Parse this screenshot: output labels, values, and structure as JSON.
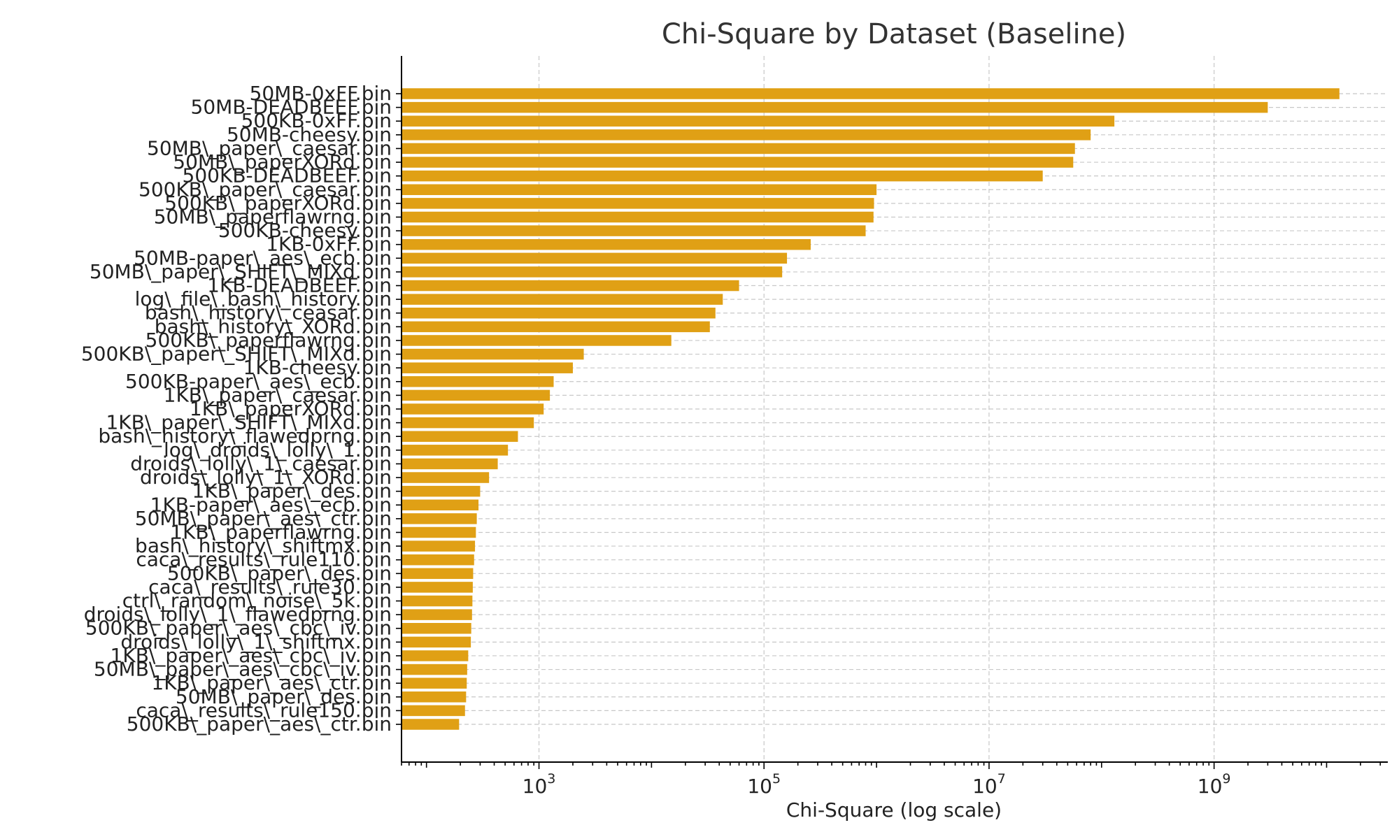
{
  "chart_data": {
    "type": "bar",
    "orientation": "horizontal",
    "title": "Chi-Square by Dataset (Baseline)",
    "xlabel": "Chi-Square (log scale)",
    "ylabel": "",
    "x_scale": "log",
    "xlim": [
      60,
      35000000000
    ],
    "x_ticks": [
      {
        "value": 1000,
        "base": "10",
        "exp": "3"
      },
      {
        "value": 100000,
        "base": "10",
        "exp": "5"
      },
      {
        "value": 10000000,
        "base": "10",
        "exp": "7"
      },
      {
        "value": 1000000000,
        "base": "10",
        "exp": "9"
      }
    ],
    "grid": true,
    "bar_color": "#E0A015",
    "categories": [
      "50MB-0xFF.bin",
      "50MB-DEADBEEF.bin",
      "500KB-0xFF.bin",
      "50MB-cheesy.bin",
      "50MB\\_paper\\_caesar.bin",
      "50MB\\_paperXORd.bin",
      "500KB-DEADBEEF.bin",
      "500KB\\_paper\\_caesar.bin",
      "500KB\\_paperXORd.bin",
      "50MB\\_paperflawrng.bin",
      "500KB-cheesy.bin",
      "1KB-0xFF.bin",
      "50MB-paper\\_aes\\_ecb.bin",
      "50MB\\_paper\\_SHIFT\\_MIXd.bin",
      "1KB-DEADBEEF.bin",
      "log\\_file\\_bash\\_history.bin",
      "bash\\_history\\_ceasar.bin",
      "bash\\_history\\_XORd.bin",
      "500KB\\_paperflawrng.bin",
      "500KB\\_paper\\_SHIFT\\_MIXd.bin",
      "1KB-cheesy.bin",
      "500KB-paper\\_aes\\_ecb.bin",
      "1KB\\_paper\\_caesar.bin",
      "1KB\\_paperXORd.bin",
      "1KB\\_paper\\_SHIFT\\_MIXd.bin",
      "bash\\_history\\_flawedprng.bin",
      "log\\_droids\\_lolly\\_1.bin",
      "droids\\_lolly\\_1\\_caesar.bin",
      "droids\\_lolly\\_1\\_XORd.bin",
      "1KB\\_paper\\_des.bin",
      "1KB-paper\\_aes\\_ecb.bin",
      "50MB\\_paper\\_aes\\_ctr.bin",
      "1KB\\_paperflawrng.bin",
      "bash\\_history\\_shiftmx.bin",
      "caca\\_results\\_rule110.bin",
      "500KB\\_paper\\_des.bin",
      "caca\\_results\\_rule30.bin",
      "ctrl\\_random\\_noise\\_5k.bin",
      "droids\\_lolly\\_1\\_flawedprng.bin",
      "500KB\\_paper\\_aes\\_cbc\\_iv.bin",
      "droids\\_lolly\\_1\\_shiftmx.bin",
      "1KB\\_paper\\_aes\\_cbc\\_iv.bin",
      "50MB\\_paper\\_aes\\_cbc\\_iv.bin",
      "1KB\\_paper\\_aes\\_ctr.bin",
      "50MB\\_paper\\_des.bin",
      "caca\\_results\\_rule150.bin",
      "500KB\\_paper\\_aes\\_ctr.bin"
    ],
    "values": [
      13000000000,
      3000000000,
      130000000,
      80000000,
      58000000,
      56000000,
      30000000,
      1000000,
      950000,
      940000,
      800000,
      260000,
      160000,
      145000,
      60000,
      43000,
      37000,
      33000,
      15000,
      2500,
      2000,
      1350,
      1250,
      1100,
      900,
      650,
      530,
      430,
      360,
      300,
      290,
      280,
      275,
      270,
      265,
      260,
      258,
      256,
      254,
      250,
      248,
      235,
      230,
      228,
      225,
      220,
      195
    ]
  }
}
